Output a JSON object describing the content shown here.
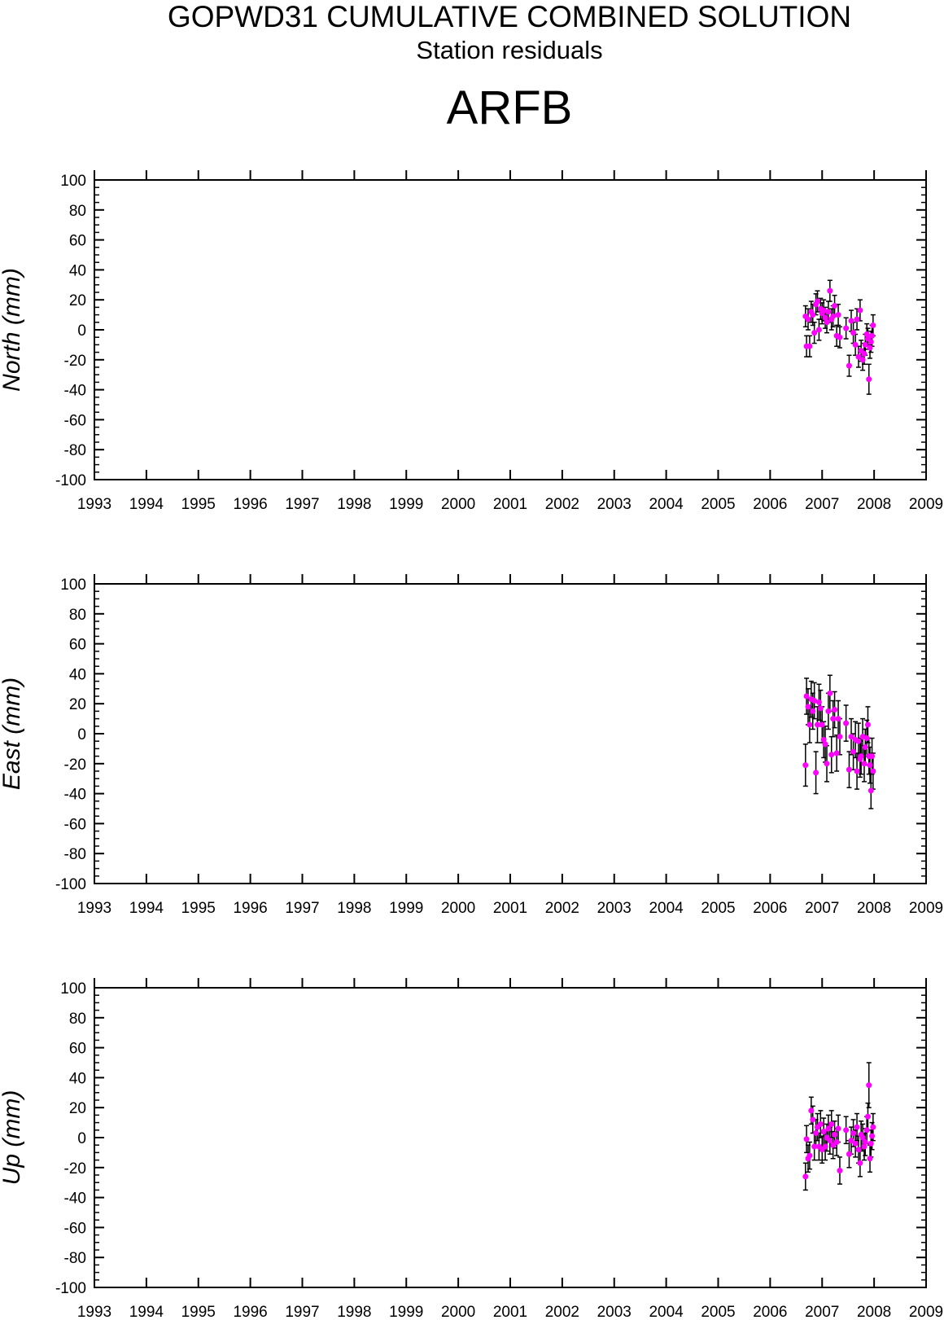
{
  "header": {
    "title": "GOPWD31 CUMULATIVE COMBINED SOLUTION",
    "subtitle": "Station residuals",
    "station": "ARFB"
  },
  "colors": {
    "marker": "#ff00ff",
    "errorbar": "#000000",
    "axis": "#000000"
  },
  "chart_data": [
    {
      "type": "scatter",
      "ylabel": "North (mm)",
      "xlim": [
        1993,
        2009
      ],
      "ylim": [
        -100,
        100
      ],
      "xticks": [
        "1993",
        "1994",
        "1995",
        "1996",
        "1997",
        "1998",
        "1999",
        "2000",
        "2001",
        "2002",
        "2003",
        "2004",
        "2005",
        "2006",
        "2007",
        "2008",
        "2009"
      ],
      "yticks": [
        "100",
        "80",
        "60",
        "40",
        "20",
        "0",
        "-20",
        "-40",
        "-60",
        "-80",
        "-100"
      ],
      "points": [
        [
          2006.68,
          9,
          7
        ],
        [
          2006.7,
          -11,
          7
        ],
        [
          2006.73,
          7,
          7
        ],
        [
          2006.76,
          -11,
          7
        ],
        [
          2006.79,
          12,
          7
        ],
        [
          2006.82,
          10,
          7
        ],
        [
          2006.85,
          -2,
          7
        ],
        [
          2006.88,
          17,
          7
        ],
        [
          2006.91,
          19,
          7
        ],
        [
          2006.94,
          0,
          7
        ],
        [
          2006.97,
          14,
          7
        ],
        [
          2007.0,
          11,
          7
        ],
        [
          2007.03,
          13,
          7
        ],
        [
          2007.06,
          8,
          7
        ],
        [
          2007.09,
          5,
          7
        ],
        [
          2007.12,
          12,
          7
        ],
        [
          2007.15,
          26,
          7
        ],
        [
          2007.18,
          7,
          7
        ],
        [
          2007.21,
          9,
          7
        ],
        [
          2007.24,
          16,
          7
        ],
        [
          2007.28,
          -4,
          7
        ],
        [
          2007.31,
          10,
          7
        ],
        [
          2007.34,
          -5,
          7
        ],
        [
          2007.46,
          1,
          7
        ],
        [
          2007.52,
          -24,
          7
        ],
        [
          2007.56,
          6,
          7
        ],
        [
          2007.6,
          -2,
          7
        ],
        [
          2007.64,
          -10,
          7
        ],
        [
          2007.67,
          7,
          7
        ],
        [
          2007.7,
          -18,
          7
        ],
        [
          2007.73,
          13,
          7
        ],
        [
          2007.75,
          -14,
          7
        ],
        [
          2007.78,
          -20,
          7
        ],
        [
          2007.81,
          -16,
          7
        ],
        [
          2007.83,
          -10,
          7
        ],
        [
          2007.86,
          -3,
          7
        ],
        [
          2007.88,
          -6,
          7
        ],
        [
          2007.9,
          -33,
          10
        ],
        [
          2007.92,
          -12,
          7
        ],
        [
          2007.94,
          -8,
          7
        ],
        [
          2007.96,
          -4,
          7
        ],
        [
          2007.98,
          3,
          7
        ]
      ]
    },
    {
      "type": "scatter",
      "ylabel": "East (mm)",
      "xlim": [
        1993,
        2009
      ],
      "ylim": [
        -100,
        100
      ],
      "xticks": [
        "1993",
        "1994",
        "1995",
        "1996",
        "1997",
        "1998",
        "1999",
        "2000",
        "2001",
        "2002",
        "2003",
        "2004",
        "2005",
        "2006",
        "2007",
        "2008",
        "2009"
      ],
      "yticks": [
        "100",
        "80",
        "60",
        "40",
        "20",
        "0",
        "-20",
        "-40",
        "-60",
        "-80",
        "-100"
      ],
      "points": [
        [
          2006.68,
          -21,
          14
        ],
        [
          2006.7,
          25,
          12
        ],
        [
          2006.73,
          18,
          12
        ],
        [
          2006.76,
          6,
          12
        ],
        [
          2006.79,
          23,
          12
        ],
        [
          2006.82,
          15,
          12
        ],
        [
          2006.85,
          22,
          12
        ],
        [
          2006.88,
          -26,
          14
        ],
        [
          2006.91,
          6,
          12
        ],
        [
          2006.94,
          21,
          12
        ],
        [
          2006.97,
          17,
          12
        ],
        [
          2007.0,
          6,
          12
        ],
        [
          2007.03,
          -4,
          12
        ],
        [
          2007.06,
          -7,
          12
        ],
        [
          2007.09,
          -20,
          12
        ],
        [
          2007.12,
          15,
          12
        ],
        [
          2007.15,
          27,
          12
        ],
        [
          2007.18,
          -14,
          12
        ],
        [
          2007.21,
          10,
          12
        ],
        [
          2007.24,
          16,
          12
        ],
        [
          2007.28,
          -13,
          12
        ],
        [
          2007.31,
          10,
          12
        ],
        [
          2007.34,
          -2,
          12
        ],
        [
          2007.46,
          7,
          12
        ],
        [
          2007.52,
          -24,
          12
        ],
        [
          2007.56,
          -2,
          12
        ],
        [
          2007.6,
          -12,
          12
        ],
        [
          2007.64,
          -4,
          12
        ],
        [
          2007.67,
          -25,
          12
        ],
        [
          2007.7,
          -5,
          12
        ],
        [
          2007.73,
          -17,
          12
        ],
        [
          2007.75,
          -15,
          12
        ],
        [
          2007.78,
          -2,
          12
        ],
        [
          2007.81,
          -20,
          12
        ],
        [
          2007.83,
          -9,
          12
        ],
        [
          2007.86,
          -3,
          12
        ],
        [
          2007.88,
          6,
          12
        ],
        [
          2007.9,
          -15,
          12
        ],
        [
          2007.92,
          -21,
          12
        ],
        [
          2007.94,
          -38,
          12
        ],
        [
          2007.96,
          -15,
          12
        ],
        [
          2007.98,
          -25,
          12
        ]
      ]
    },
    {
      "type": "scatter",
      "ylabel": "Up (mm)",
      "xlim": [
        1993,
        2009
      ],
      "ylim": [
        -100,
        100
      ],
      "xticks": [
        "1993",
        "1994",
        "1995",
        "1996",
        "1997",
        "1998",
        "1999",
        "2000",
        "2001",
        "2002",
        "2003",
        "2004",
        "2005",
        "2006",
        "2007",
        "2008",
        "2009"
      ],
      "yticks": [
        "100",
        "80",
        "60",
        "40",
        "20",
        "0",
        "-20",
        "-40",
        "-60",
        "-80",
        "-100"
      ],
      "points": [
        [
          2006.68,
          -26,
          9
        ],
        [
          2006.7,
          -1,
          9
        ],
        [
          2006.73,
          -14,
          9
        ],
        [
          2006.76,
          -12,
          9
        ],
        [
          2006.79,
          18,
          9
        ],
        [
          2006.82,
          12,
          9
        ],
        [
          2006.85,
          -6,
          9
        ],
        [
          2006.88,
          3,
          9
        ],
        [
          2006.91,
          7,
          9
        ],
        [
          2006.94,
          -6,
          9
        ],
        [
          2006.97,
          9,
          9
        ],
        [
          2007.0,
          -8,
          9
        ],
        [
          2007.03,
          4,
          9
        ],
        [
          2007.06,
          -6,
          9
        ],
        [
          2007.09,
          0,
          9
        ],
        [
          2007.12,
          6,
          9
        ],
        [
          2007.15,
          -2,
          9
        ],
        [
          2007.18,
          9,
          9
        ],
        [
          2007.21,
          -5,
          9
        ],
        [
          2007.24,
          2,
          9
        ],
        [
          2007.28,
          -3,
          9
        ],
        [
          2007.31,
          6,
          9
        ],
        [
          2007.34,
          -22,
          9
        ],
        [
          2007.46,
          5,
          9
        ],
        [
          2007.52,
          -11,
          9
        ],
        [
          2007.56,
          -2,
          9
        ],
        [
          2007.6,
          3,
          9
        ],
        [
          2007.64,
          -4,
          9
        ],
        [
          2007.67,
          7,
          9
        ],
        [
          2007.7,
          -8,
          9
        ],
        [
          2007.73,
          -17,
          9
        ],
        [
          2007.75,
          2,
          9
        ],
        [
          2007.78,
          0,
          9
        ],
        [
          2007.81,
          -6,
          9
        ],
        [
          2007.83,
          -3,
          9
        ],
        [
          2007.86,
          5,
          9
        ],
        [
          2007.88,
          14,
          9
        ],
        [
          2007.9,
          35,
          15
        ],
        [
          2007.92,
          -14,
          9
        ],
        [
          2007.94,
          -4,
          9
        ],
        [
          2007.96,
          1,
          9
        ],
        [
          2007.98,
          7,
          9
        ]
      ]
    }
  ]
}
